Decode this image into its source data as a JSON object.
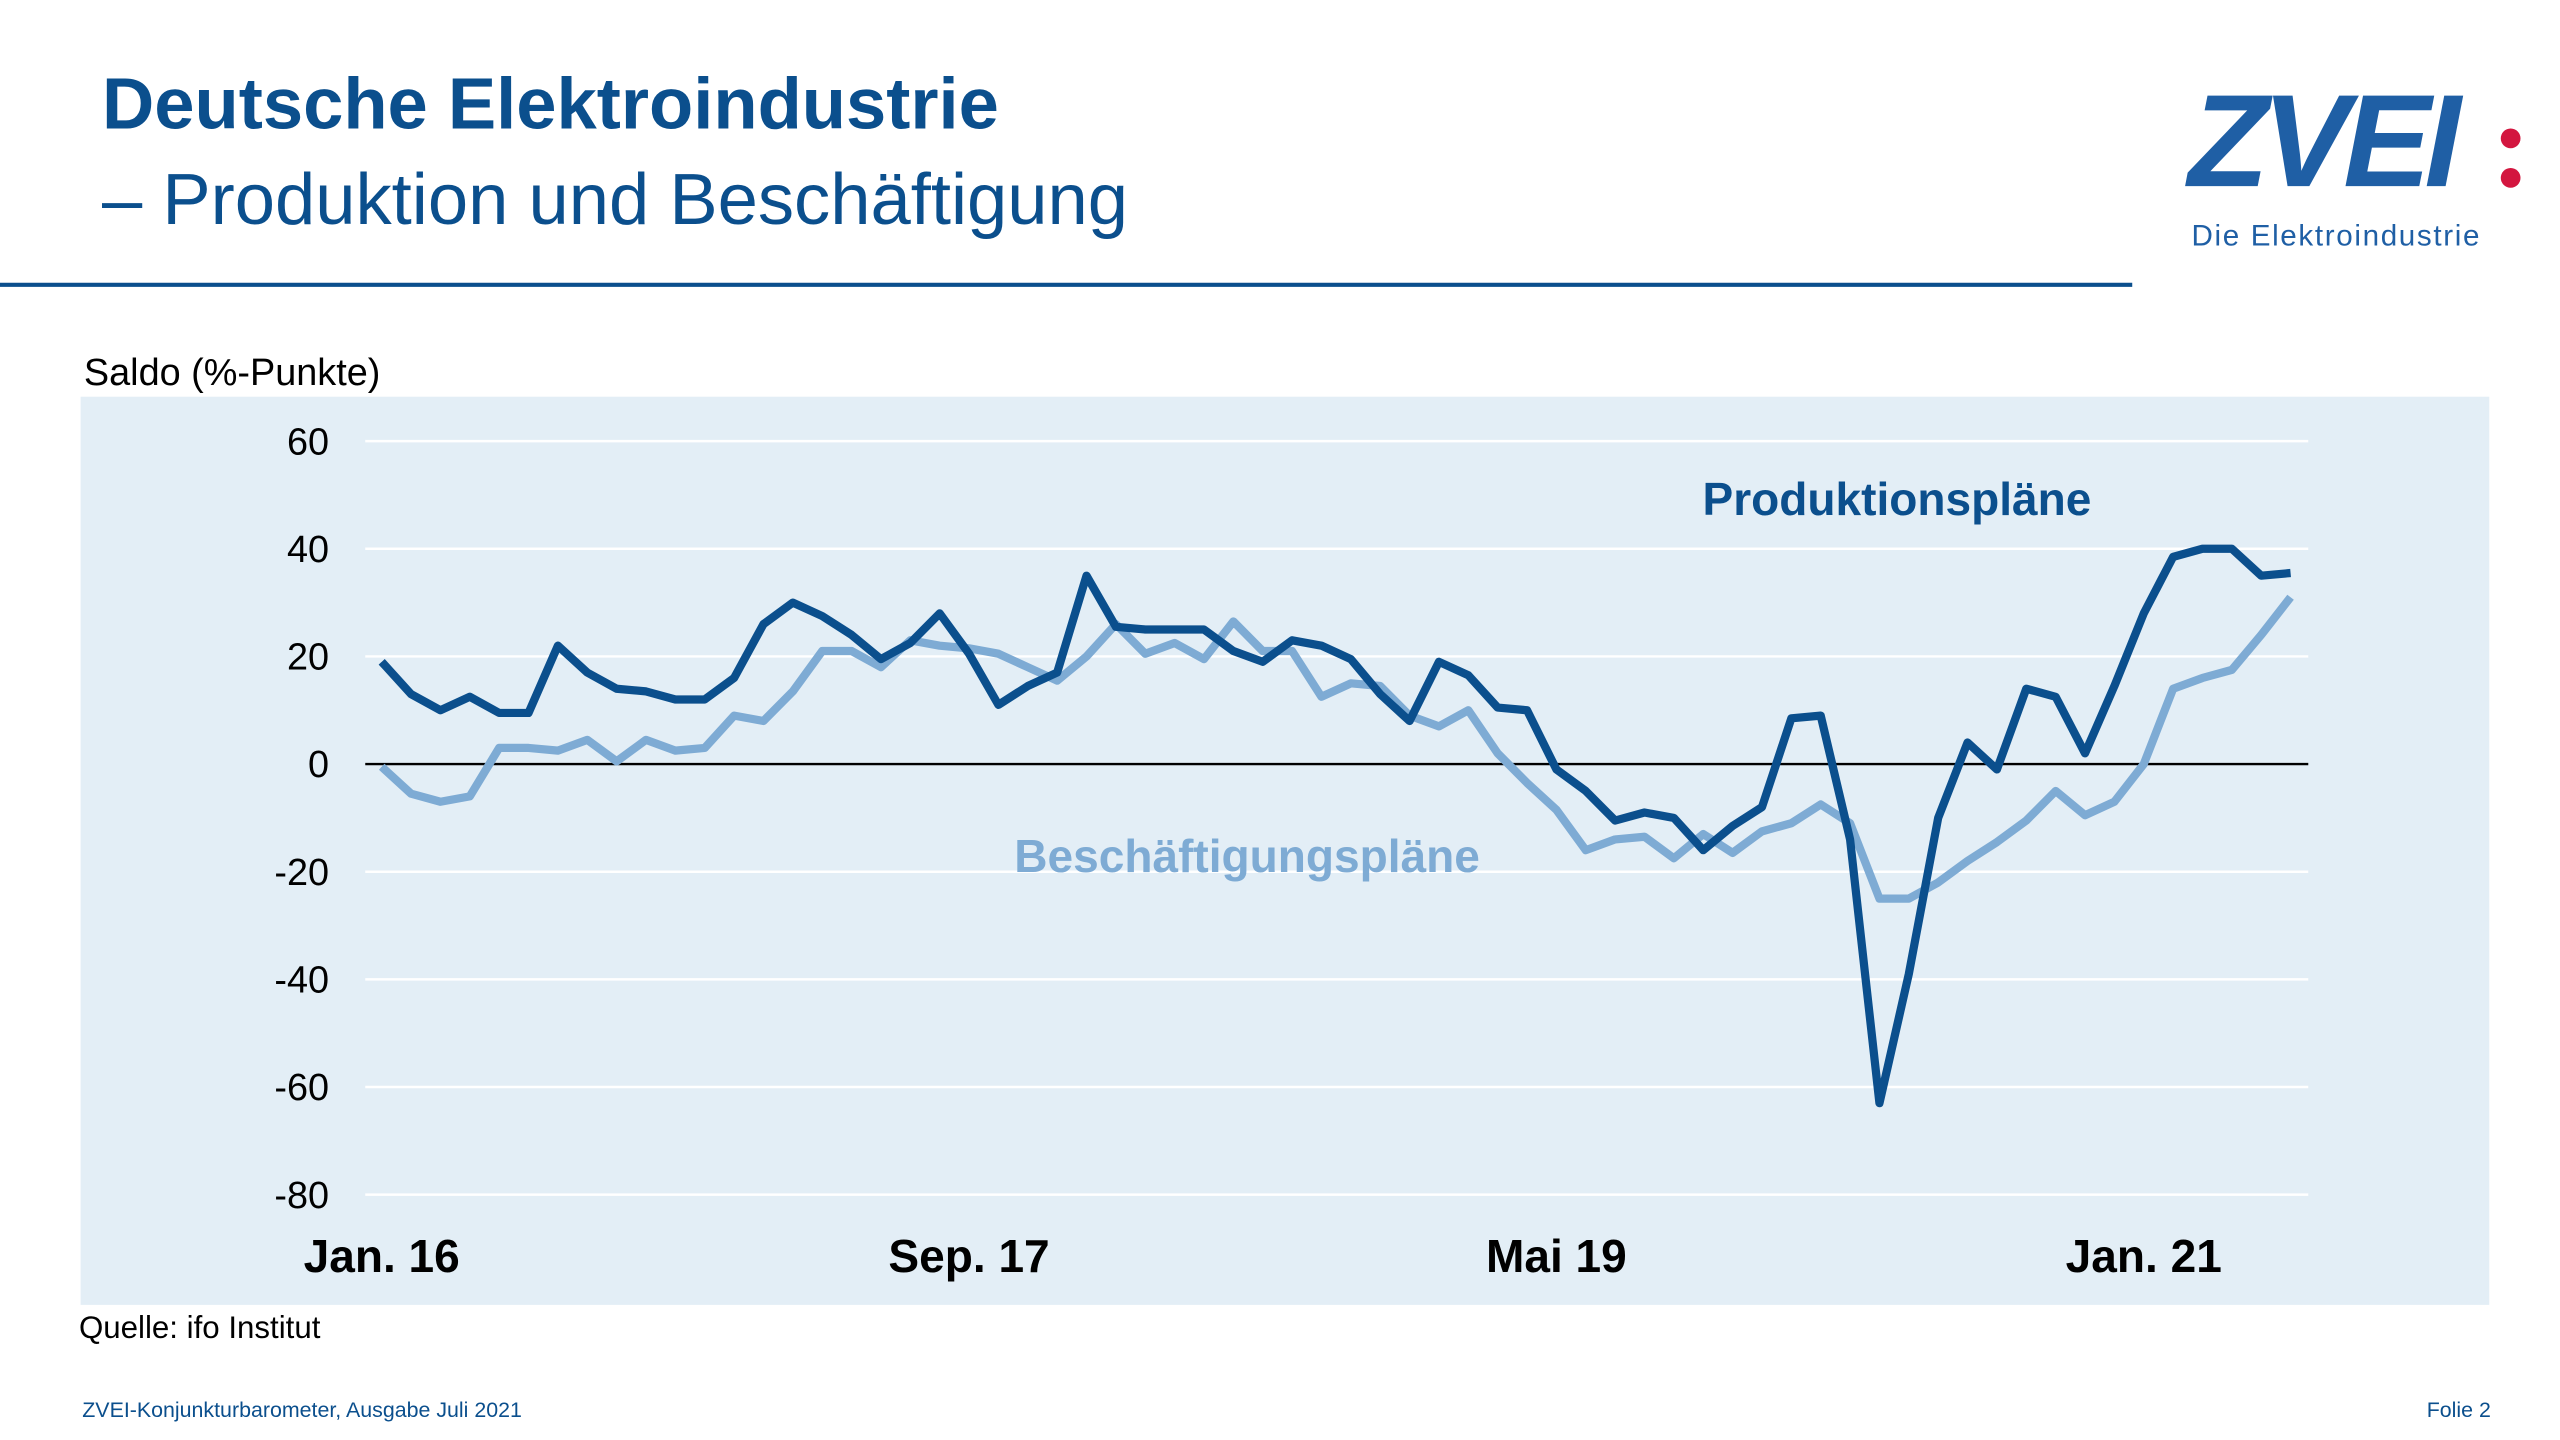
{
  "header": {
    "title": "Deutsche Elektroindustrie",
    "subtitle": "– Produktion und Beschäftigung"
  },
  "logo": {
    "text": "ZVEI",
    "tagline": "Die Elektroindustrie"
  },
  "footer": {
    "left": "ZVEI-Konjunkturbarometer, Ausgabe Juli 2021",
    "right": "Folie 2"
  },
  "chart_data": {
    "type": "line",
    "y_label": "Saldo (%-Punkte)",
    "source": "Quelle: ifo Institut",
    "categories": [
      "Jan. 16",
      null,
      null,
      null,
      null,
      null,
      null,
      null,
      null,
      null,
      null,
      null,
      null,
      null,
      null,
      null,
      null,
      null,
      null,
      null,
      "Sep. 17",
      null,
      null,
      null,
      null,
      null,
      null,
      null,
      null,
      null,
      null,
      null,
      null,
      null,
      null,
      null,
      null,
      null,
      null,
      null,
      "Mai 19",
      null,
      null,
      null,
      null,
      null,
      null,
      null,
      null,
      null,
      null,
      null,
      null,
      null,
      null,
      null,
      null,
      null,
      null,
      null,
      "Jan. 21",
      null,
      null,
      null,
      null,
      null
    ],
    "series": [
      {
        "name": "Produktionspläne",
        "color": "#0b4f8d",
        "values": [
          19,
          13,
          10,
          12.5,
          9.5,
          9.5,
          22,
          17,
          14,
          13.5,
          12,
          12,
          16,
          26,
          30,
          27.5,
          24,
          19.5,
          22.5,
          28,
          20.5,
          11,
          14.5,
          17,
          35,
          25.5,
          25,
          25,
          25,
          21,
          19,
          23,
          22,
          19.5,
          13,
          8,
          19,
          16.5,
          10.5,
          10,
          -1,
          -5,
          -10.5,
          -9,
          -10,
          -16,
          -11.5,
          -8,
          8.5,
          9,
          -14,
          -63,
          -39,
          -10,
          4,
          -1,
          14,
          12.5,
          2,
          14.5,
          28,
          38.5,
          40,
          40,
          35,
          35.5
        ]
      },
      {
        "name": "Beschäftigungspläne",
        "color": "#7eabd4",
        "values": [
          -0.5,
          -5.5,
          -7,
          -6,
          3,
          3,
          2.5,
          4.5,
          0.5,
          4.5,
          2.5,
          3,
          9,
          8,
          13.5,
          21,
          21,
          18,
          23,
          22,
          21.5,
          20.5,
          18,
          15.5,
          20,
          26,
          20.5,
          22.5,
          19.5,
          26.5,
          21,
          21,
          12.5,
          15,
          14.5,
          9,
          7,
          10,
          2,
          -3.5,
          -8.5,
          -16,
          -14,
          -13.5,
          -17.5,
          -13,
          -16.5,
          -12.5,
          -11,
          -7.5,
          -11,
          -25,
          -25,
          -22,
          -18,
          -14.5,
          -10.5,
          -5,
          -9.5,
          -7,
          0,
          14,
          16,
          17.5,
          24,
          31
        ]
      }
    ],
    "ylim": [
      -80,
      60
    ],
    "yticks": [
      -80,
      -60,
      -40,
      -20,
      0,
      20,
      40,
      60
    ],
    "grid": true
  }
}
